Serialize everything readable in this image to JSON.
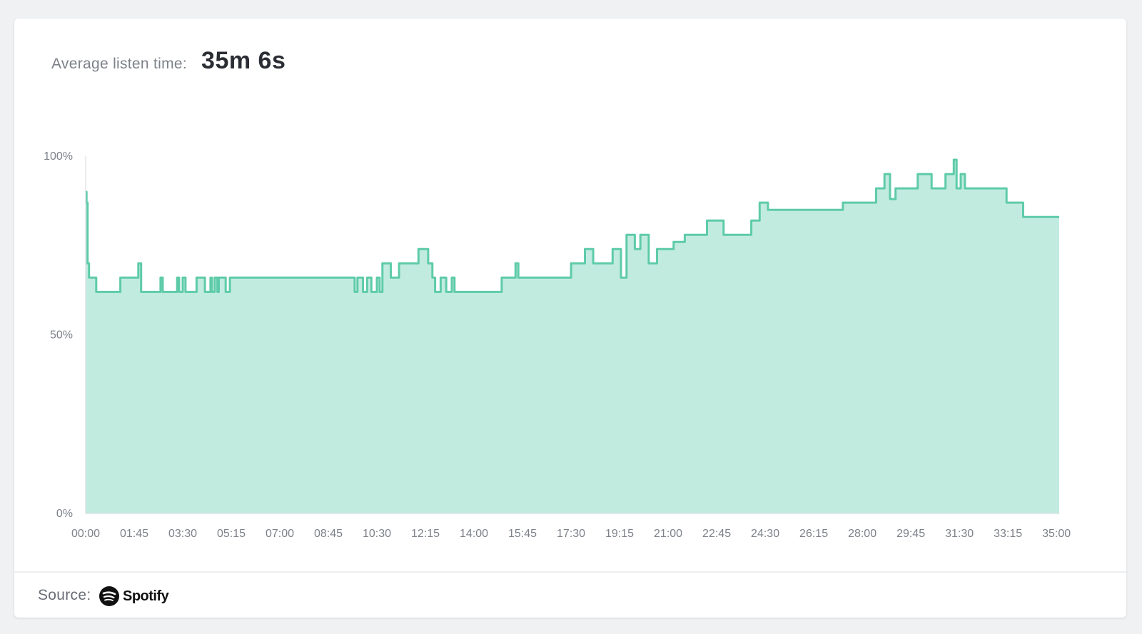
{
  "header": {
    "label": "Average listen time:",
    "value": "35m 6s"
  },
  "footer": {
    "source_label": "Source:",
    "brand": "Spotify",
    "brand_icon": "spotify-logo-icon"
  },
  "colors": {
    "line": "#5ecba8",
    "fill": "#c2ebe0",
    "axis": "#d5d8dc",
    "text": "#7d8189"
  },
  "chart_data": {
    "type": "area",
    "title": "",
    "xlabel": "",
    "ylabel": "",
    "xlim": [
      0,
      35.1
    ],
    "ylim": [
      0,
      100
    ],
    "x_tick_labels": [
      "00:00",
      "01:45",
      "03:30",
      "05:15",
      "07:00",
      "08:45",
      "10:30",
      "12:15",
      "14:00",
      "15:45",
      "17:30",
      "19:15",
      "21:00",
      "22:45",
      "24:30",
      "26:15",
      "28:00",
      "29:45",
      "31:30",
      "33:15",
      "35:00"
    ],
    "y_tick_labels": [
      "0%",
      "50%",
      "100%"
    ],
    "y_ticks": [
      0,
      50,
      100
    ],
    "grid": false,
    "step": true,
    "series": [
      {
        "x": [
          0.0,
          0.03,
          0.07,
          0.1,
          0.12,
          0.38,
          0.42,
          0.48,
          0.55,
          1.25,
          1.85,
          1.9,
          2.0,
          2.1,
          2.25,
          2.7,
          2.78,
          3.3,
          3.37,
          3.5,
          3.6,
          4.0,
          4.1,
          4.3,
          4.5,
          4.55,
          4.65,
          4.75,
          4.8,
          5.05,
          5.2,
          9.7,
          9.8,
          10.0,
          10.15,
          10.3,
          10.5,
          10.6,
          10.7,
          11.0,
          11.3,
          12.0,
          12.35,
          12.5,
          12.6,
          12.8,
          13.0,
          13.2,
          13.3,
          14.0,
          15.0,
          15.5,
          15.6,
          16.8,
          17.5,
          18.0,
          18.3,
          19.0,
          19.3,
          19.5,
          19.8,
          20.0,
          20.3,
          20.6,
          21.2,
          21.6,
          22.4,
          23.0,
          23.4,
          24.0,
          24.3,
          24.6,
          25.0,
          27.3,
          28.5,
          28.8,
          29.0,
          29.2,
          29.5,
          30.0,
          30.5,
          31.0,
          31.3,
          31.4,
          31.55,
          31.7,
          32.0,
          33.2,
          33.8,
          34.0,
          35.1
        ],
        "y": [
          90,
          87,
          70,
          70,
          66,
          62,
          62,
          62,
          62,
          66,
          66,
          70,
          62,
          62,
          62,
          66,
          62,
          66,
          62,
          66,
          62,
          66,
          66,
          62,
          66,
          62,
          66,
          62,
          66,
          62,
          66,
          62,
          66,
          62,
          66,
          62,
          66,
          62,
          70,
          66,
          70,
          74,
          70,
          66,
          62,
          66,
          62,
          66,
          62,
          62,
          66,
          70,
          66,
          66,
          70,
          74,
          70,
          74,
          66,
          78,
          74,
          78,
          70,
          74,
          76,
          78,
          82,
          78,
          78,
          82,
          87,
          85,
          85,
          87,
          91,
          95,
          88,
          91,
          91,
          95,
          91,
          95,
          99,
          91,
          95,
          91,
          91,
          87,
          83,
          83,
          83
        ]
      }
    ]
  }
}
